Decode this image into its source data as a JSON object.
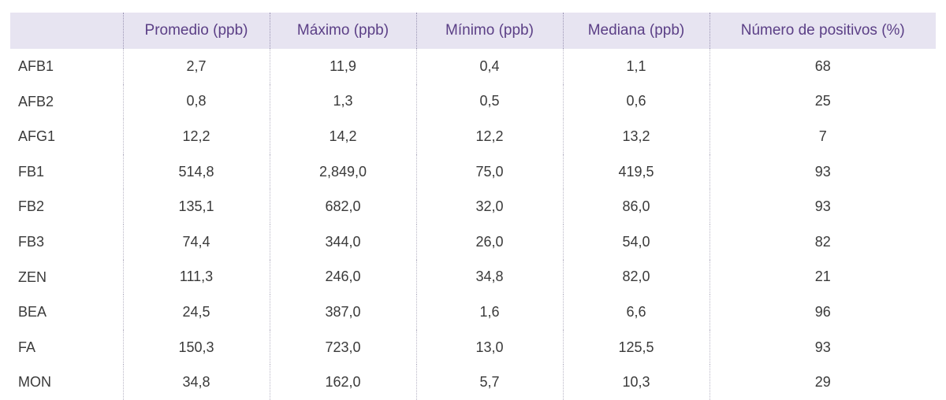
{
  "table": {
    "headers": [
      "",
      "Promedio (ppb)",
      "Máximo (ppb)",
      "Mínimo (ppb)",
      "Mediana (ppb)",
      "Número de positivos (%)"
    ],
    "rows": [
      [
        "AFB1",
        "2,7",
        "11,9",
        "0,4",
        "1,1",
        "68"
      ],
      [
        "AFB2",
        "0,8",
        "1,3",
        "0,5",
        "0,6",
        "25"
      ],
      [
        "AFG1",
        "12,2",
        "14,2",
        "12,2",
        "13,2",
        "7"
      ],
      [
        "FB1",
        "514,8",
        "2,849,0",
        "75,0",
        "419,5",
        "93"
      ],
      [
        "FB2",
        "135,1",
        "682,0",
        "32,0",
        "86,0",
        "93"
      ],
      [
        "FB3",
        "74,4",
        "344,0",
        "26,0",
        "54,0",
        "82"
      ],
      [
        "ZEN",
        "111,3",
        "246,0",
        "34,8",
        "82,0",
        "21"
      ],
      [
        "BEA",
        "24,5",
        "387,0",
        "1,6",
        "6,6",
        "96"
      ],
      [
        "FA",
        "150,3",
        "723,0",
        "13,0",
        "125,5",
        "93"
      ],
      [
        "MON",
        "34,8",
        "162,0",
        "5,7",
        "10,3",
        "29"
      ]
    ]
  },
  "colors": {
    "header_bg": "#e7e4f1",
    "header_text": "#5b3f86",
    "body_text": "#3a3a3a"
  }
}
